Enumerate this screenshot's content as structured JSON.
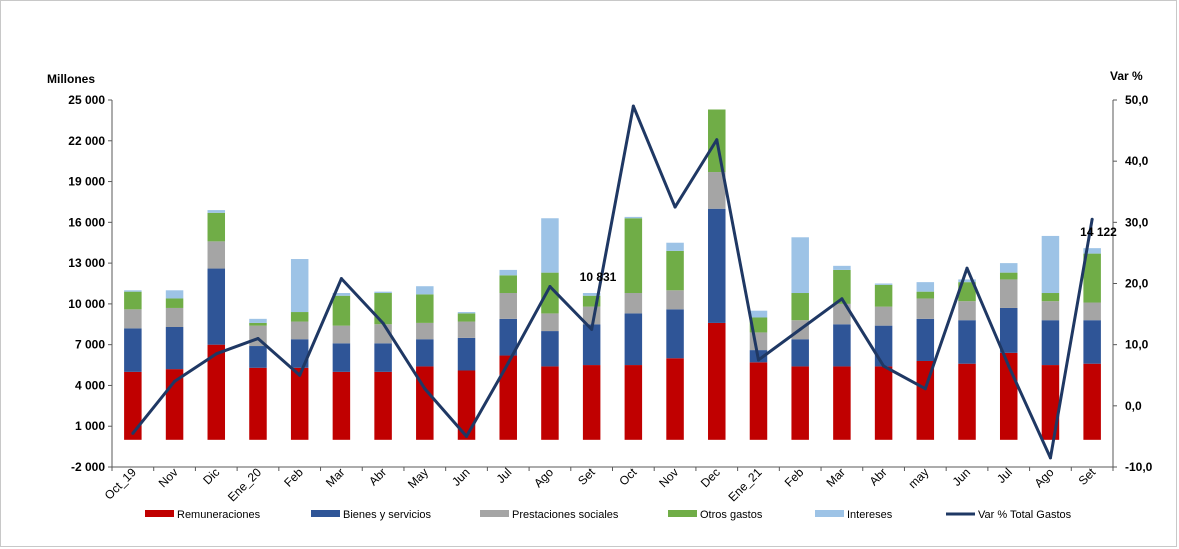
{
  "chart_data": {
    "type": "bar",
    "stacked": true,
    "left_axis_title": "Millones",
    "right_axis_title": "Var %",
    "left_ticks": [
      -2000,
      1000,
      4000,
      7000,
      10000,
      13000,
      16000,
      19000,
      22000,
      25000
    ],
    "left_tick_labels": [
      "-2 000",
      "1 000",
      "4 000",
      "7 000",
      "10 000",
      "13 000",
      "16 000",
      "19 000",
      "22 000",
      "25 000"
    ],
    "ylim_left": [
      -2000,
      25000
    ],
    "right_ticks": [
      -10,
      0,
      10,
      20,
      30,
      40,
      50
    ],
    "right_tick_labels": [
      "-10,0",
      "0,0",
      "10,0",
      "20,0",
      "30,0",
      "40,0",
      "50,0"
    ],
    "ylim_right": [
      -10,
      50
    ],
    "categories": [
      "Oct_19",
      "Nov",
      "Dic",
      "Ene_20",
      "Feb",
      "Mar",
      "Abr",
      "May",
      "Jun",
      "Jul",
      "Ago",
      "Set",
      "Oct",
      "Nov",
      "Dec",
      "Ene_21",
      "Feb",
      "Mar",
      "Abr",
      "may",
      "Jun",
      "Jul",
      "Ago",
      "Set"
    ],
    "series": [
      {
        "name": "Remuneraciones",
        "color": "#c00000",
        "values": [
          5000,
          5200,
          7000,
          5300,
          5300,
          5000,
          5000,
          5400,
          5100,
          6200,
          5400,
          5500,
          5500,
          6000,
          8600,
          5700,
          5400,
          5400,
          5400,
          5800,
          5600,
          6400,
          5500,
          5600
        ]
      },
      {
        "name": "Bienes y servicios",
        "color": "#2f5597",
        "values": [
          3200,
          3100,
          5600,
          1600,
          2100,
          2100,
          2100,
          2000,
          2400,
          2700,
          2600,
          3000,
          3800,
          3600,
          8400,
          900,
          2000,
          3100,
          3000,
          3100,
          3200,
          3300,
          3300,
          3200
        ]
      },
      {
        "name": "Prestaciones sociales",
        "color": "#a5a5a5",
        "values": [
          1400,
          1400,
          2000,
          1500,
          1300,
          1300,
          1400,
          1200,
          1200,
          1900,
          1300,
          1300,
          1500,
          1400,
          2700,
          1300,
          1400,
          1500,
          1400,
          1500,
          1400,
          2100,
          1400,
          1300
        ]
      },
      {
        "name": "Otros gastos",
        "color": "#70ad47",
        "values": [
          1300,
          700,
          2100,
          200,
          700,
          2200,
          2300,
          2100,
          600,
          1300,
          3000,
          800,
          5500,
          2900,
          4600,
          1100,
          2000,
          2500,
          1600,
          500,
          1400,
          500,
          600,
          3600
        ]
      },
      {
        "name": "Intereses",
        "color": "#9dc3e6",
        "values": [
          100,
          600,
          200,
          300,
          3900,
          200,
          100,
          600,
          100,
          400,
          4000,
          200,
          100,
          600,
          0,
          500,
          4100,
          300,
          100,
          700,
          200,
          700,
          4200,
          400
        ]
      }
    ],
    "line": {
      "name": "Var % Total Gastos",
      "color": "#1f3864",
      "values": [
        -4.5,
        4.0,
        8.5,
        11.0,
        5.0,
        20.8,
        13.5,
        2.8,
        -5.0,
        7.0,
        19.5,
        12.5,
        49.0,
        32.5,
        43.5,
        7.5,
        12.5,
        17.5,
        6.5,
        2.8,
        22.5,
        6.5,
        -8.5,
        30.5
      ]
    },
    "annotations": [
      {
        "category_index": 11,
        "text": "10 831"
      },
      {
        "category_index": 23,
        "text": "14 122"
      }
    ],
    "legend_position": "bottom",
    "grid": false
  }
}
